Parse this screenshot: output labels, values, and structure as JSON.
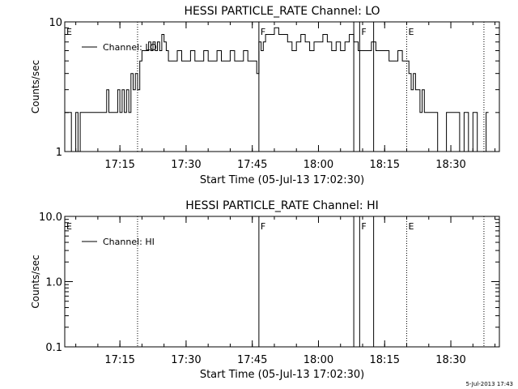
{
  "footer_timestamp": "5-Jul-2013 17:43",
  "colors": {
    "line": "#000000",
    "background": "#ffffff"
  },
  "chart_data": [
    {
      "type": "line",
      "title": "HESSI PARTICLE_RATE Channel: LO",
      "xlabel": "Start Time (05-Jul-13 17:02:30)",
      "ylabel": "Counts/sec",
      "y_scale": "log",
      "xlim": [
        "17:02:30",
        "18:41:00"
      ],
      "ylim": [
        1,
        10
      ],
      "x_ticks": [
        "17:15",
        "17:30",
        "17:45",
        "18:00",
        "18:15",
        "18:30"
      ],
      "y_ticks": [
        "1",
        "10"
      ],
      "legend": {
        "entry": "Channel: LO",
        "position": "top-left"
      },
      "grid": false,
      "markers": [
        {
          "time": "17:02:30",
          "label": "E",
          "style": "dotted"
        },
        {
          "time": "17:19:00",
          "label": "",
          "style": "dotted"
        },
        {
          "time": "17:46:30",
          "label": "F",
          "style": "solid"
        },
        {
          "time": "18:08:00",
          "label": "",
          "style": "solid"
        },
        {
          "time": "18:09:20",
          "label": "F",
          "style": "solid"
        },
        {
          "time": "18:12:30",
          "label": "",
          "style": "solid"
        },
        {
          "time": "18:20:00",
          "label": "E",
          "style": "dotted"
        },
        {
          "time": "18:37:30",
          "label": "",
          "style": "dotted"
        }
      ],
      "series": [
        {
          "name": "Channel: LO",
          "x": [
            "17:02:30",
            "17:03:30",
            "17:04:00",
            "17:04:30",
            "17:05:00",
            "17:05:30",
            "17:06:00",
            "17:07:00",
            "17:08:00",
            "17:10:00",
            "17:11:30",
            "17:12:00",
            "17:12:30",
            "17:13:30",
            "17:14:00",
            "17:14:30",
            "17:15:00",
            "17:15:30",
            "17:16:00",
            "17:16:30",
            "17:17:00",
            "17:17:30",
            "17:18:00",
            "17:18:30",
            "17:19:00",
            "17:19:30",
            "17:20:00",
            "17:20:30",
            "17:21:00",
            "17:21:30",
            "17:22:00",
            "17:22:30",
            "17:23:00",
            "17:23:30",
            "17:24:00",
            "17:24:30",
            "17:25:00",
            "17:25:30",
            "17:26:00",
            "17:27:00",
            "17:28:00",
            "17:29:00",
            "17:30:00",
            "17:31:00",
            "17:32:00",
            "17:33:00",
            "17:34:00",
            "17:35:00",
            "17:36:00",
            "17:37:00",
            "17:38:00",
            "17:39:00",
            "17:40:00",
            "17:41:00",
            "17:42:00",
            "17:43:00",
            "17:44:00",
            "17:45:00",
            "17:46:00",
            "17:46:30",
            "17:47:00",
            "17:47:30",
            "17:48:00",
            "17:49:00",
            "17:50:00",
            "17:51:00",
            "17:52:00",
            "17:53:00",
            "17:54:00",
            "17:55:00",
            "17:56:00",
            "17:57:00",
            "17:58:00",
            "17:59:00",
            "18:00:00",
            "18:01:00",
            "18:02:00",
            "18:03:00",
            "18:04:00",
            "18:05:00",
            "18:06:00",
            "18:07:00",
            "18:08:00",
            "18:09:00",
            "18:10:00",
            "18:11:00",
            "18:12:00",
            "18:13:00",
            "18:14:00",
            "18:15:00",
            "18:16:00",
            "18:17:00",
            "18:18:00",
            "18:19:00",
            "18:20:00",
            "18:20:30",
            "18:21:00",
            "18:21:30",
            "18:22:00",
            "18:22:30",
            "18:23:00",
            "18:23:30",
            "18:24:00",
            "18:25:00",
            "18:26:00",
            "18:27:00",
            "18:28:00",
            "18:29:00",
            "18:30:00",
            "18:31:00",
            "18:32:00",
            "18:33:00",
            "18:34:00",
            "18:35:00",
            "18:36:00",
            "18:37:00",
            "18:38:00"
          ],
          "values": [
            2,
            2,
            1,
            1,
            2,
            1,
            2,
            2,
            2,
            2,
            2,
            3,
            2,
            2,
            2,
            3,
            2,
            3,
            2,
            3,
            2,
            4,
            3,
            4,
            3,
            5,
            6,
            6,
            6,
            7,
            6,
            7,
            6,
            7,
            6,
            8,
            7,
            6,
            5,
            5,
            6,
            5,
            5,
            6,
            5,
            5,
            6,
            5,
            5,
            6,
            5,
            5,
            6,
            5,
            5,
            6,
            5,
            5,
            4,
            7,
            6,
            7,
            8,
            8,
            9,
            8,
            8,
            7,
            6,
            7,
            8,
            7,
            6,
            7,
            7,
            8,
            7,
            6,
            7,
            6,
            7,
            8,
            7,
            6,
            6,
            6,
            7,
            6,
            6,
            6,
            5,
            5,
            6,
            5,
            5,
            4,
            3,
            4,
            3,
            3,
            2,
            3,
            2,
            2,
            2,
            1,
            1,
            2,
            2,
            2,
            1,
            2,
            1,
            2,
            1,
            1,
            2
          ]
        }
      ]
    },
    {
      "type": "line",
      "title": "HESSI PARTICLE_RATE Channel: HI",
      "xlabel": "Start Time (05-Jul-13 17:02:30)",
      "ylabel": "Counts/sec",
      "y_scale": "log",
      "xlim": [
        "17:02:30",
        "18:41:00"
      ],
      "ylim": [
        0.1,
        10
      ],
      "x_ticks": [
        "17:15",
        "17:30",
        "17:45",
        "18:00",
        "18:15",
        "18:30"
      ],
      "y_ticks": [
        "0.1",
        "1.0",
        "10.0"
      ],
      "legend": {
        "entry": "Channel: HI",
        "position": "top-left"
      },
      "grid": false,
      "markers": [
        {
          "time": "17:02:30",
          "label": "E",
          "style": "dotted"
        },
        {
          "time": "17:19:00",
          "label": "",
          "style": "dotted"
        },
        {
          "time": "17:46:30",
          "label": "F",
          "style": "solid"
        },
        {
          "time": "18:08:00",
          "label": "",
          "style": "solid"
        },
        {
          "time": "18:09:20",
          "label": "F",
          "style": "solid"
        },
        {
          "time": "18:12:30",
          "label": "",
          "style": "solid"
        },
        {
          "time": "18:20:00",
          "label": "E",
          "style": "dotted"
        },
        {
          "time": "18:37:30",
          "label": "",
          "style": "dotted"
        }
      ],
      "series": [
        {
          "name": "Channel: HI",
          "x": [],
          "values": []
        }
      ]
    }
  ]
}
